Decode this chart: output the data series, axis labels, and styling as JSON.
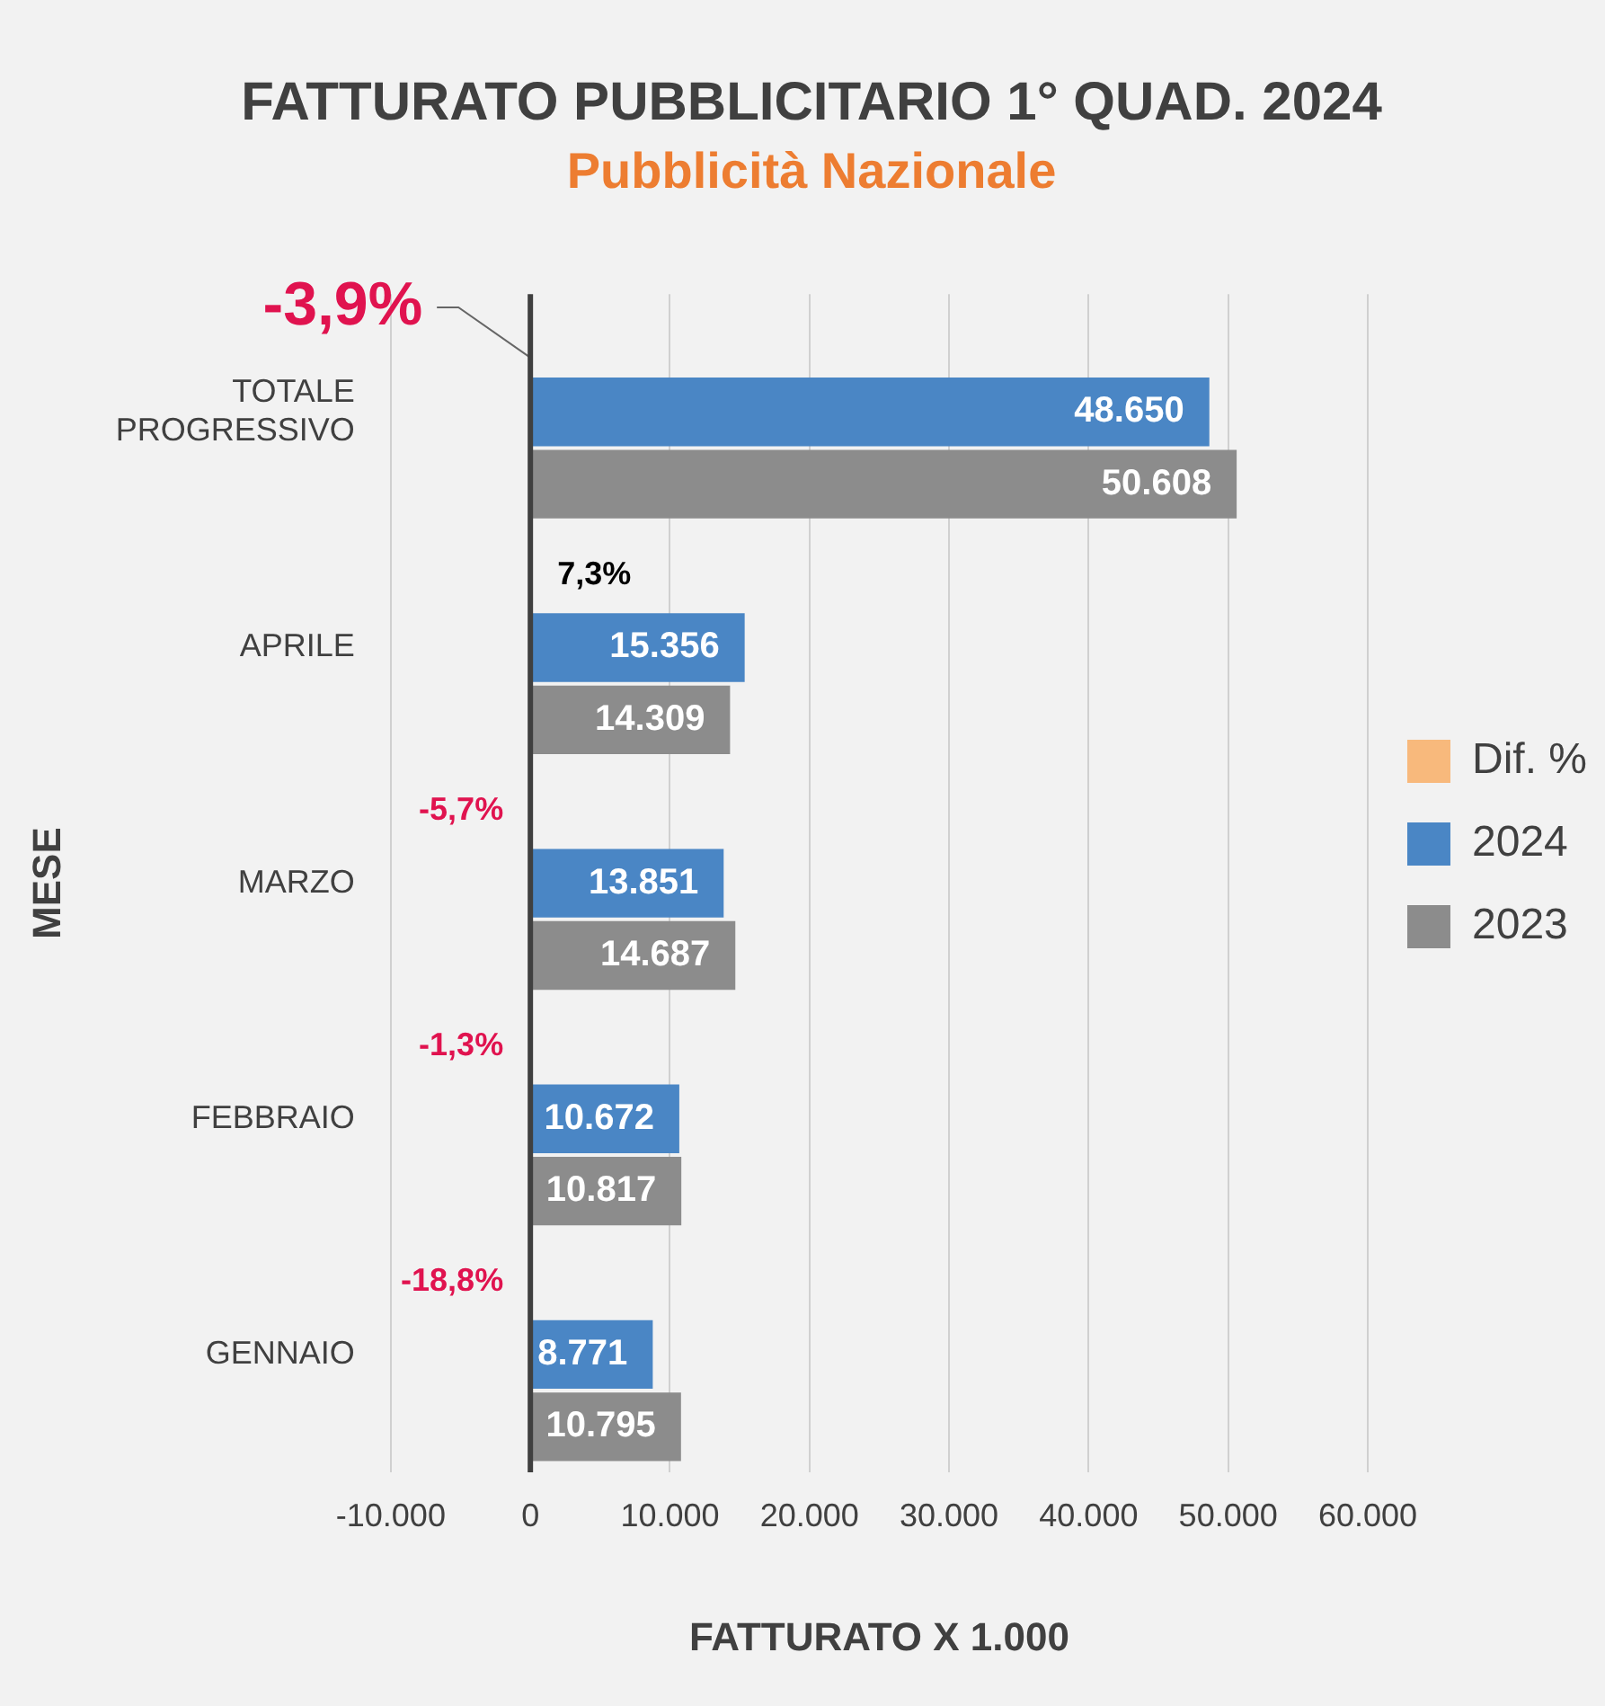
{
  "chart_data": {
    "type": "bar",
    "orientation": "horizontal",
    "title": "FATTURATO PUBBLICITARIO 1° QUAD. 2024",
    "subtitle": "Pubblicità Nazionale",
    "xlabel": "FATTURATO X 1.000",
    "ylabel": "MESE",
    "categories": [
      "TOTALE PROGRESSIVO",
      "APRILE",
      "MARZO",
      "FEBBRAIO",
      "GENNAIO"
    ],
    "series": [
      {
        "name": "Dif. %",
        "color": "#f8b97c",
        "values": [
          -3.9,
          7.3,
          -5.7,
          -1.3,
          -18.8
        ],
        "value_labels": [
          "-3,9%",
          "7,3%",
          "-5,7%",
          "-1,3%",
          "-18,8%"
        ]
      },
      {
        "name": "2024",
        "color": "#4a86c5",
        "values": [
          48650,
          15356,
          13851,
          10672,
          8771
        ],
        "value_labels": [
          "48.650",
          "15.356",
          "13.851",
          "10.672",
          "8.771"
        ]
      },
      {
        "name": "2023",
        "color": "#8c8c8c",
        "values": [
          50608,
          14309,
          14687,
          10817,
          10795
        ],
        "value_labels": [
          "50.608",
          "14.309",
          "14.687",
          "10.817",
          "10.795"
        ]
      }
    ],
    "xlim": [
      -10000,
      60000
    ],
    "xticks": [
      {
        "value": -10000,
        "label": "-10.000"
      },
      0,
      {
        "value": 10000,
        "label": "10.000"
      },
      {
        "value": 20000,
        "label": "20.000"
      },
      {
        "value": 30000,
        "label": "30.000"
      },
      {
        "value": 40000,
        "label": "40.000"
      },
      {
        "value": 50000,
        "label": "50.000"
      },
      {
        "value": 60000,
        "label": "60.000"
      }
    ],
    "grid": "x",
    "legend": "right"
  }
}
